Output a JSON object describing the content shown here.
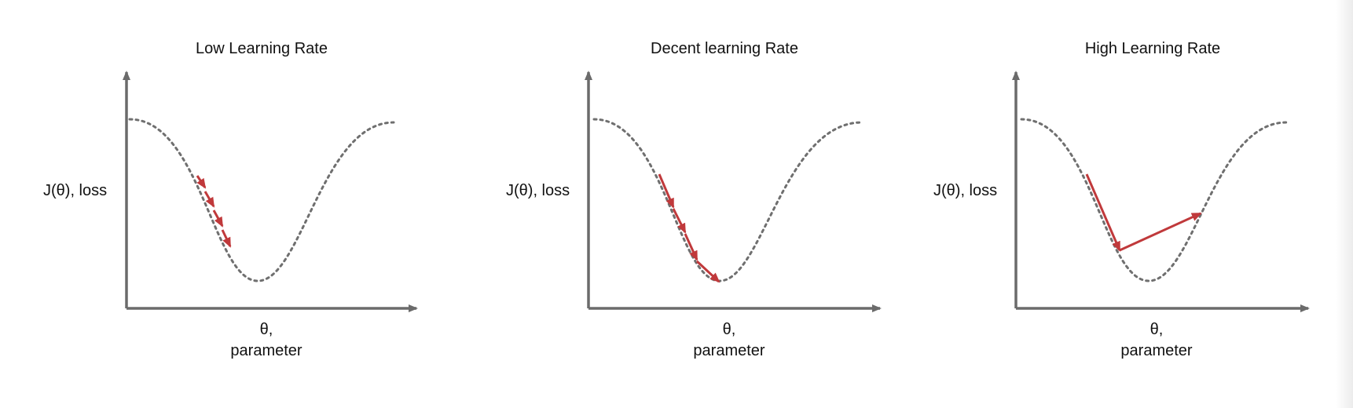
{
  "colors": {
    "axis": "#6b6b6b",
    "curve": "#6f6f6f",
    "arrow": "#c0393b"
  },
  "panels": [
    {
      "title": "Low Learning Rate",
      "ylabel": "J(θ), loss",
      "xlabel_1": "θ,",
      "xlabel_2": "parameter"
    },
    {
      "title": "Decent learning Rate",
      "ylabel": "J(θ), loss",
      "xlabel_1": "θ,",
      "xlabel_2": "parameter"
    },
    {
      "title": "High Learning Rate",
      "ylabel": "J(θ), loss",
      "xlabel_1": "θ,",
      "xlabel_2": "parameter"
    }
  ]
}
